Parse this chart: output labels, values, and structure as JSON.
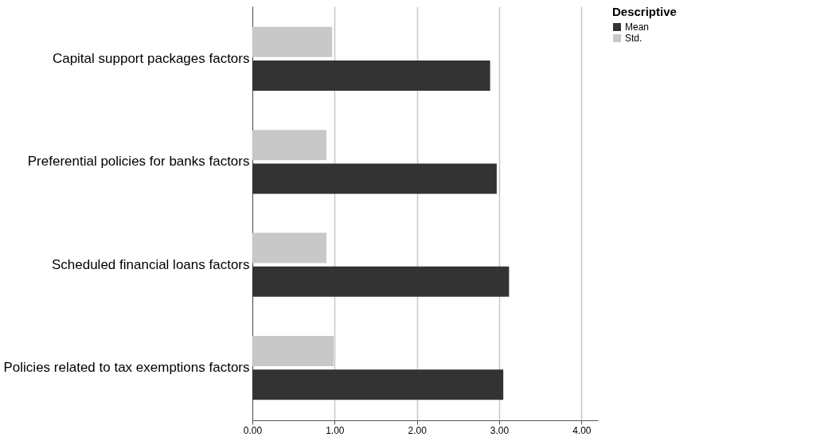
{
  "chart_data": {
    "type": "bar",
    "orientation": "horizontal",
    "legend_title": "Descriptive",
    "legend": "top right",
    "grid": "x",
    "categories": [
      "Capital support packages factors",
      "Preferential policies for banks factors",
      "Scheduled financial loans factors",
      "Policies related to tax exemptions factors"
    ],
    "series": [
      {
        "name": "Mean",
        "color": "#333333",
        "values": [
          2.89,
          2.97,
          3.12,
          3.05
        ]
      },
      {
        "name": "Std.",
        "color": "#c8c8c8",
        "values": [
          0.97,
          0.9,
          0.9,
          0.99
        ]
      }
    ],
    "xlim": [
      0,
      4.2
    ],
    "xticks": [
      {
        "value": 0,
        "label": "0.00"
      },
      {
        "value": 1,
        "label": "1.00"
      },
      {
        "value": 2,
        "label": "2.00"
      },
      {
        "value": 3,
        "label": "3.00"
      },
      {
        "value": 4,
        "label": "4.00"
      }
    ]
  }
}
